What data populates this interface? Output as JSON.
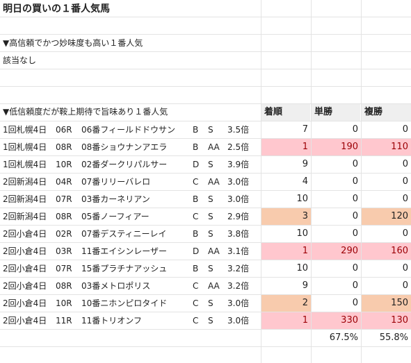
{
  "title": "明日の買いの１番人気馬",
  "section1": {
    "heading": "▼高信頼でかつ妙味度も高い１番人気",
    "note": "該当なし"
  },
  "section2": {
    "heading": "▼低信頼度だが鞍上期待で旨味あり１番人気"
  },
  "columns": {
    "order": "着順",
    "win": "単勝",
    "place": "複勝"
  },
  "rows": [
    {
      "meeting": "1回札幌4日",
      "race": "06R",
      "horse": "06番フィールドドウサン",
      "grade": "B",
      "rank": "S",
      "odds": "3.5倍",
      "order": "7",
      "win": "0",
      "place": "0",
      "order_hl": "none",
      "win_hl": "none",
      "place_hl": "none"
    },
    {
      "meeting": "1回札幌4日",
      "race": "08R",
      "horse": "08番ショウナンアエラ",
      "grade": "B",
      "rank": "AA",
      "odds": "2.5倍",
      "order": "1",
      "win": "190",
      "place": "110",
      "order_hl": "pink",
      "win_hl": "pink",
      "place_hl": "pink"
    },
    {
      "meeting": "1回札幌4日",
      "race": "10R",
      "horse": "02番ダークリパルサー",
      "grade": "D",
      "rank": "S",
      "odds": "3.9倍",
      "order": "9",
      "win": "0",
      "place": "0",
      "order_hl": "none",
      "win_hl": "none",
      "place_hl": "none"
    },
    {
      "meeting": "2回新潟4日",
      "race": "04R",
      "horse": "07番リリーバレロ",
      "grade": "C",
      "rank": "AA",
      "odds": "3.0倍",
      "order": "4",
      "win": "0",
      "place": "0",
      "order_hl": "none",
      "win_hl": "none",
      "place_hl": "none"
    },
    {
      "meeting": "2回新潟4日",
      "race": "07R",
      "horse": "03番カーネリアン",
      "grade": "B",
      "rank": "S",
      "odds": "3.0倍",
      "order": "10",
      "win": "0",
      "place": "0",
      "order_hl": "none",
      "win_hl": "none",
      "place_hl": "none"
    },
    {
      "meeting": "2回新潟4日",
      "race": "08R",
      "horse": "05番ノーフィアー",
      "grade": "C",
      "rank": "S",
      "odds": "2.9倍",
      "order": "3",
      "win": "0",
      "place": "120",
      "order_hl": "peach",
      "win_hl": "none",
      "place_hl": "peach"
    },
    {
      "meeting": "2回小倉4日",
      "race": "02R",
      "horse": "07番デスティニーレイ",
      "grade": "B",
      "rank": "S",
      "odds": "3.8倍",
      "order": "10",
      "win": "0",
      "place": "0",
      "order_hl": "none",
      "win_hl": "none",
      "place_hl": "none"
    },
    {
      "meeting": "2回小倉4日",
      "race": "03R",
      "horse": "11番エイシンレーザー",
      "grade": "D",
      "rank": "AA",
      "odds": "3.1倍",
      "order": "1",
      "win": "290",
      "place": "160",
      "order_hl": "pink",
      "win_hl": "pink",
      "place_hl": "pink"
    },
    {
      "meeting": "2回小倉4日",
      "race": "07R",
      "horse": "15番プラチナアッシュ",
      "grade": "B",
      "rank": "S",
      "odds": "3.2倍",
      "order": "10",
      "win": "0",
      "place": "0",
      "order_hl": "none",
      "win_hl": "none",
      "place_hl": "none"
    },
    {
      "meeting": "2回小倉4日",
      "race": "08R",
      "horse": "03番メトロポリス",
      "grade": "C",
      "rank": "AA",
      "odds": "3.2倍",
      "order": "9",
      "win": "0",
      "place": "0",
      "order_hl": "none",
      "win_hl": "none",
      "place_hl": "none"
    },
    {
      "meeting": "2回小倉4日",
      "race": "10R",
      "horse": "10番ニホンピロタイド",
      "grade": "C",
      "rank": "S",
      "odds": "3.0倍",
      "order": "2",
      "win": "0",
      "place": "150",
      "order_hl": "peach",
      "win_hl": "none",
      "place_hl": "peach"
    },
    {
      "meeting": "2回小倉4日",
      "race": "11R",
      "horse": "11番トリオンフ",
      "grade": "C",
      "rank": "S",
      "odds": "3.0倍",
      "order": "1",
      "win": "330",
      "place": "130",
      "order_hl": "pink",
      "win_hl": "pink",
      "place_hl": "pink"
    }
  ],
  "totals": {
    "win": "67.5%",
    "place": "55.8%"
  },
  "colors": {
    "pink_fill": "#ffc7ce",
    "pink_text": "#9c0006",
    "peach_fill": "#f8cbad",
    "header_fill": "#efefef"
  }
}
